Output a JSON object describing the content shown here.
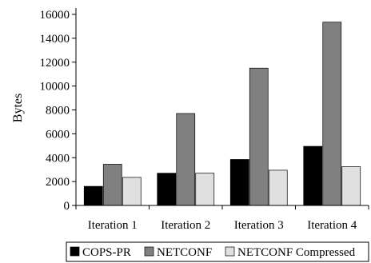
{
  "chart_data": {
    "type": "bar",
    "categories": [
      "Iteration 1",
      "Iteration 2",
      "Iteration 3",
      "Iteration 4"
    ],
    "series": [
      {
        "name": "COPS-PR",
        "color": "#000000",
        "values": [
          1600,
          2700,
          3850,
          4950
        ]
      },
      {
        "name": "NETCONF",
        "color": "#808080",
        "values": [
          3450,
          7700,
          11500,
          15350
        ]
      },
      {
        "name": "NETCONF Compressed",
        "color": "#e0e0e0",
        "values": [
          2350,
          2700,
          2950,
          3250
        ]
      }
    ],
    "ylabel": "Bytes",
    "ylim": [
      0,
      16000
    ],
    "yticks": [
      0,
      2000,
      4000,
      6000,
      8000,
      10000,
      12000,
      14000,
      16000
    ],
    "grid": false,
    "legend": "bottom"
  }
}
